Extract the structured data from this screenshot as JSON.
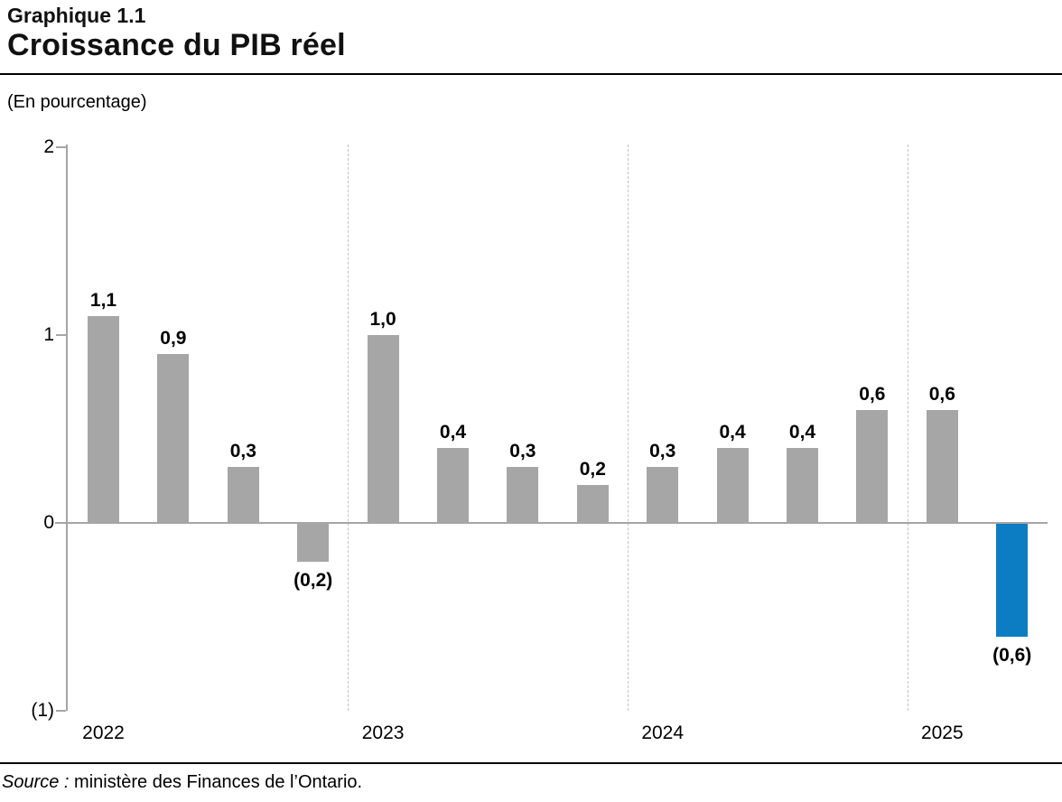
{
  "header": {
    "chart_number": "Graphique 1.1",
    "title": "Croissance du PIB réel"
  },
  "footer": {
    "source_label": "Source :",
    "source_text": "ministère des Finances de l’Ontario."
  },
  "chart_data": {
    "type": "bar",
    "title": "Croissance du PIB réel",
    "subtitle": "Graphique 1.1",
    "ylabel": "(En pourcentage)",
    "xlabel": "",
    "ylim": [
      -1,
      2
    ],
    "y_ticks": [
      {
        "value": 2,
        "label": "2"
      },
      {
        "value": 1,
        "label": "1"
      },
      {
        "value": 0,
        "label": "0"
      },
      {
        "value": -1,
        "label": "(1)"
      }
    ],
    "grid": "vertical dashed separators between year groups",
    "legend_position": "none",
    "bar_color": "#a6a6a6",
    "highlight_color": "#0c7dc2",
    "axis_color": "#a6a6a6",
    "highlight_index": 13,
    "groups": [
      {
        "year": "2022",
        "values": [
          1.1,
          0.9,
          0.3,
          -0.2
        ],
        "labels": [
          "1,1",
          "0,9",
          "0,3",
          "(0,2)"
        ]
      },
      {
        "year": "2023",
        "values": [
          1.0,
          0.4,
          0.3,
          0.2
        ],
        "labels": [
          "1,0",
          "0,4",
          "0,3",
          "0,2"
        ]
      },
      {
        "year": "2024",
        "values": [
          0.3,
          0.4,
          0.4,
          0.6
        ],
        "labels": [
          "0,3",
          "0,4",
          "0,4",
          "0,6"
        ]
      },
      {
        "year": "2025",
        "values": [
          0.6,
          -0.6
        ],
        "labels": [
          "0,6",
          "(0,6)"
        ]
      }
    ]
  }
}
